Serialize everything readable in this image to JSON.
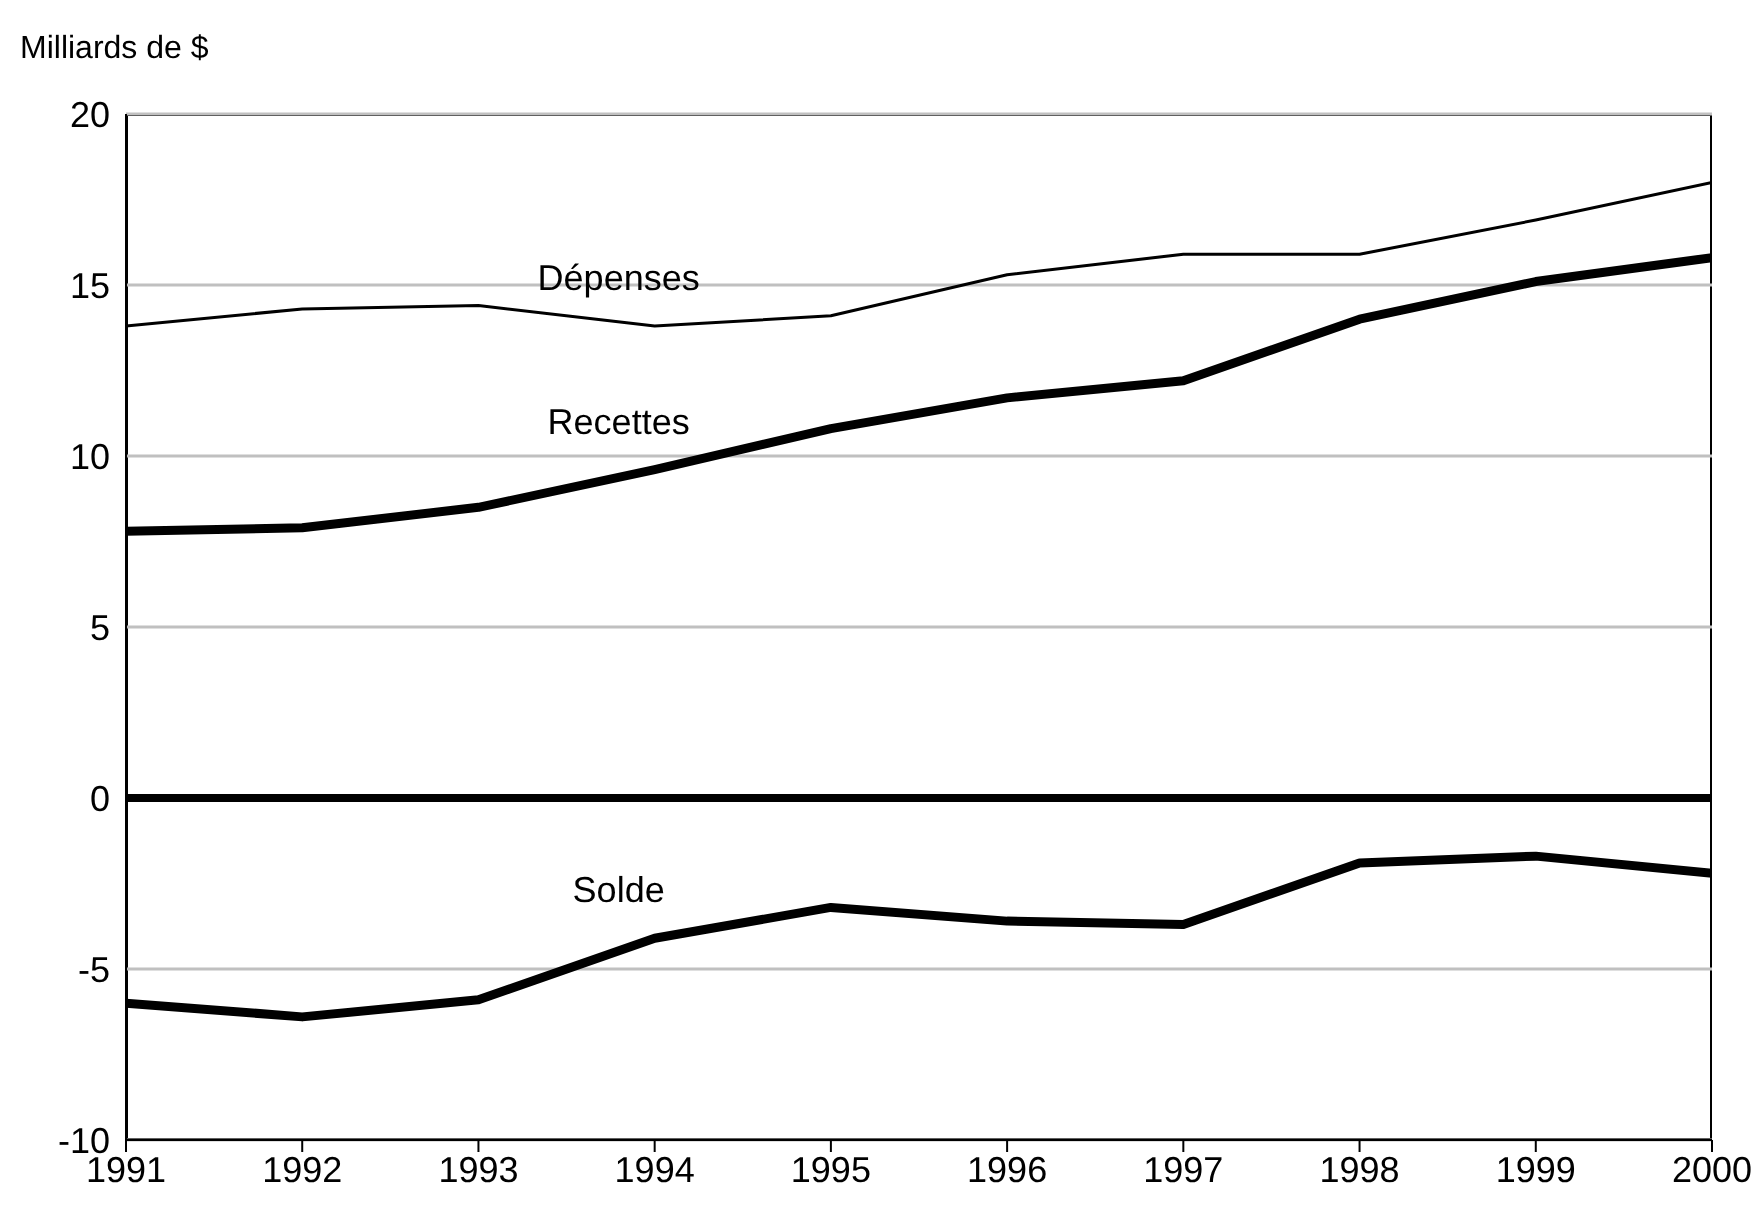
{
  "chart_data": {
    "type": "line",
    "ylabel": "Milliards de $",
    "x": [
      1991,
      1992,
      1993,
      1994,
      1995,
      1996,
      1997,
      1998,
      1999,
      2000
    ],
    "series": [
      {
        "name": "Dépenses",
        "color": "#000000",
        "values": [
          13.8,
          14.3,
          14.4,
          13.8,
          14.1,
          15.3,
          15.9,
          15.9,
          16.9,
          18.0
        ]
      },
      {
        "name": "Recettes",
        "color": "#000000",
        "values": [
          7.8,
          7.9,
          8.5,
          9.6,
          10.8,
          11.7,
          12.2,
          14.0,
          15.1,
          15.8
        ]
      },
      {
        "name": "Solde",
        "color": "#000000",
        "values": [
          -6.0,
          -6.4,
          -5.9,
          -4.1,
          -3.2,
          -3.6,
          -3.7,
          -1.9,
          -1.7,
          -2.2
        ]
      }
    ],
    "xlim": [
      1991,
      2000
    ],
    "xticks": [
      1991,
      1992,
      1993,
      1994,
      1995,
      1996,
      1997,
      1998,
      1999,
      2000
    ],
    "ylim": [
      -10,
      20
    ],
    "yticks": [
      -10,
      -5,
      0,
      5,
      10,
      15,
      20
    ],
    "ref_lines": [
      {
        "axis": "y",
        "value": 0,
        "color": "#000000"
      }
    ],
    "grid": "y",
    "legend": false,
    "marker": "none",
    "line_style": "solid"
  }
}
